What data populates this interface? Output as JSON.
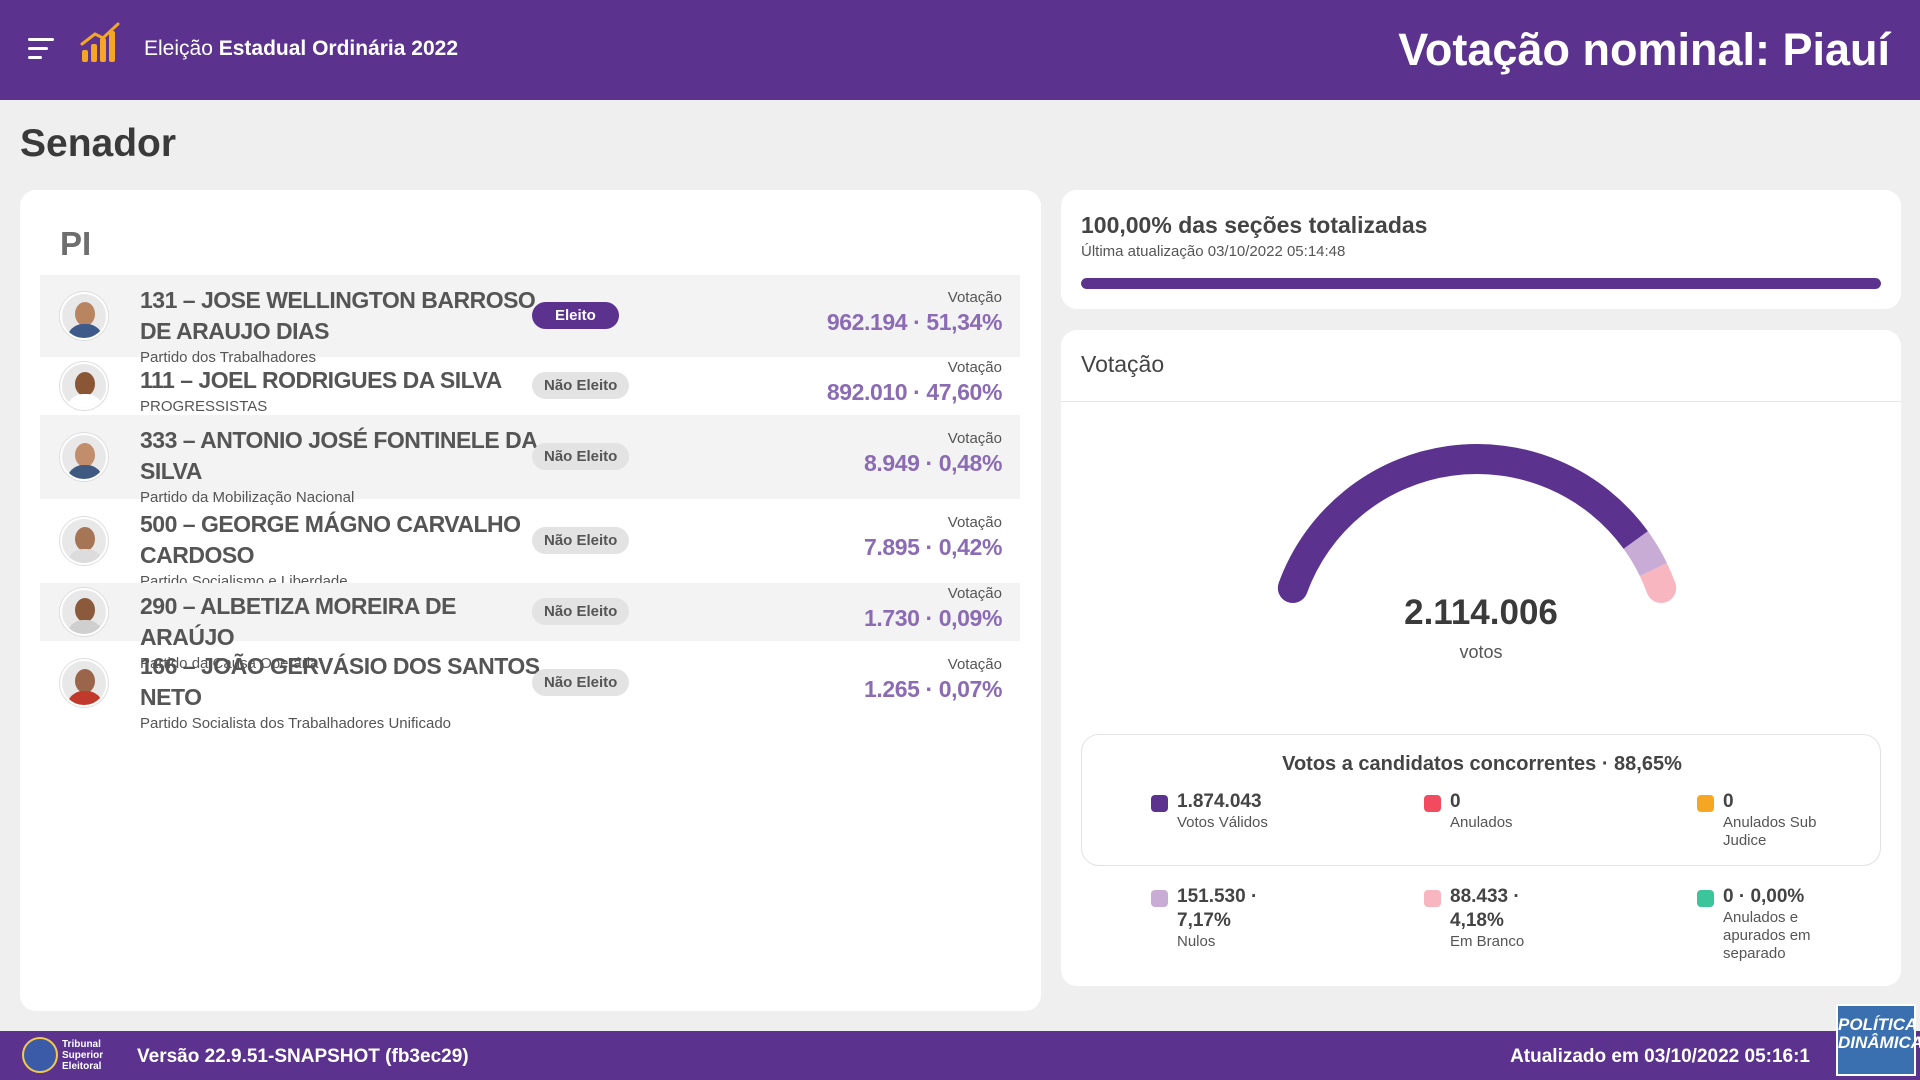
{
  "header": {
    "election_prefix": "Eleição ",
    "election_bold": "Estadual Ordinária 2022",
    "page_heading": "Votação nominal: Piauí"
  },
  "section_title": "Senador",
  "state": "PI",
  "candidates": [
    {
      "name": "131 – JOSE WELLINGTON BARROSO DE ARAUJO DIAS",
      "party": "Partido dos Trabalhadores",
      "status": "Eleito",
      "vote_label": "Votação",
      "votes": "962.194 · 51,34%"
    },
    {
      "name": "111 – JOEL RODRIGUES DA SILVA",
      "party": "PROGRESSISTAS",
      "status": "Não Eleito",
      "vote_label": "Votação",
      "votes": "892.010 · 47,60%"
    },
    {
      "name": "333 – ANTONIO JOSÉ FONTINELE DA SILVA",
      "party": "Partido da Mobilização Nacional",
      "status": "Não Eleito",
      "vote_label": "Votação",
      "votes": "8.949 · 0,48%"
    },
    {
      "name": "500 – GEORGE MÁGNO CARVALHO CARDOSO",
      "party": "Partido Socialismo e Liberdade",
      "status": "Não Eleito",
      "vote_label": "Votação",
      "votes": "7.895 · 0,42%"
    },
    {
      "name": "290 – ALBETIZA MOREIRA DE ARAÚJO",
      "party": "Partido da Causa Operária",
      "status": "Não Eleito",
      "vote_label": "Votação",
      "votes": "1.730 · 0,09%"
    },
    {
      "name": "166 – JOÃO GERVÁSIO DOS SANTOS NETO",
      "party": "Partido Socialista dos Trabalhadores Unificado",
      "status": "Não Eleito",
      "vote_label": "Votação",
      "votes": "1.265 · 0,07%"
    }
  ],
  "progress": {
    "title": "100,00% das seções totalizadas",
    "subtitle": "Última atualização 03/10/2022 05:14:48",
    "fraction": 1.0
  },
  "votes_panel": {
    "title": "Votação",
    "total": "2.114.006",
    "unit": "votos",
    "gauge_shares": {
      "valid": 0.8865,
      "null": 0.0717,
      "blank": 0.0418
    },
    "summary_title": "Votos a candidatos concorrentes · 88,65%",
    "legend_top": [
      {
        "value": "1.874.043",
        "label": "Votos Válidos",
        "color": "#5b338f"
      },
      {
        "value": "0",
        "label": "Anulados",
        "color": "#f24a5e"
      },
      {
        "value": "0",
        "label": "Anulados Sub Judice",
        "color": "#f5a623"
      }
    ],
    "legend_bottom": [
      {
        "value": "151.530 · 7,17%",
        "label": "Nulos",
        "color": "#c9acd6"
      },
      {
        "value": "88.433 · 4,18%",
        "label": "Em Branco",
        "color": "#f8b6c0"
      },
      {
        "value": "0 · 0,00%",
        "label": "Anulados e apurados em separado",
        "color": "#3cc49a"
      }
    ]
  },
  "footer": {
    "tse_lines": [
      "Tribunal",
      "Superior",
      "Eleitoral"
    ],
    "version": "Versão 22.9.51-SNAPSHOT (fb3ec29)",
    "updated": "Atualizado em 03/10/2022 05:16:1"
  },
  "watermark": {
    "line1": "POLÍTICA",
    "line2": "DINÂMICA"
  },
  "colors": {
    "brand": "#5b338f",
    "accent_value": "#8a6bb4",
    "logo_orange": "#f5a623"
  }
}
